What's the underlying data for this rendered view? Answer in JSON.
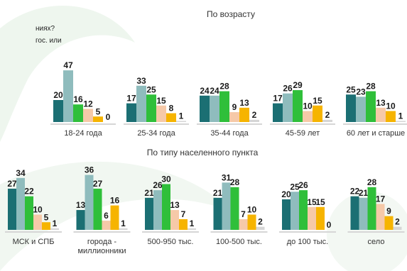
{
  "question_fragment": {
    "line1": "ниях?",
    "line2": "гос. или"
  },
  "colors": {
    "series": [
      "#1b6f73",
      "#8fbcbd",
      "#2fbf3a",
      "#f6c9a8",
      "#f6b400",
      "#d6d6d6"
    ],
    "separator": "#d6d6d6",
    "label_text": "#1a1a1a",
    "title_text": "#333333",
    "category_text": "#333333",
    "background_shape": "#eaf3ea"
  },
  "chart_data": [
    {
      "type": "bar",
      "title": "По возрасту",
      "xlabel": "",
      "ylabel": "",
      "categories": [
        "18-24 года",
        "25-34 года",
        "35-44 года",
        "45-59 лет",
        "60 лет и старше"
      ],
      "groups": [
        [
          20,
          47,
          16,
          12,
          5,
          0
        ],
        [
          17,
          33,
          25,
          15,
          8,
          1
        ],
        [
          24,
          24,
          28,
          9,
          13,
          2
        ],
        [
          17,
          26,
          29,
          10,
          15,
          2
        ],
        [
          25,
          23,
          28,
          13,
          10,
          1
        ]
      ],
      "ylim": [
        0,
        50
      ],
      "grid": false,
      "legend": "none"
    },
    {
      "type": "bar",
      "title": "По типу населенного пункта",
      "xlabel": "",
      "ylabel": "",
      "categories": [
        "МСК и СПБ",
        "города - миллионники",
        "500-950 тыс.",
        "100-500 тыс.",
        "до 100 тыс.",
        "село"
      ],
      "groups": [
        [
          27,
          34,
          22,
          10,
          5,
          1
        ],
        [
          13,
          36,
          27,
          6,
          16,
          1
        ],
        [
          21,
          26,
          30,
          13,
          7,
          1
        ],
        [
          21,
          31,
          28,
          7,
          10,
          2
        ],
        [
          20,
          25,
          26,
          15,
          15,
          0
        ],
        [
          22,
          21,
          28,
          17,
          9,
          2
        ]
      ],
      "ylim": [
        0,
        50
      ],
      "grid": false,
      "legend": "none"
    }
  ]
}
